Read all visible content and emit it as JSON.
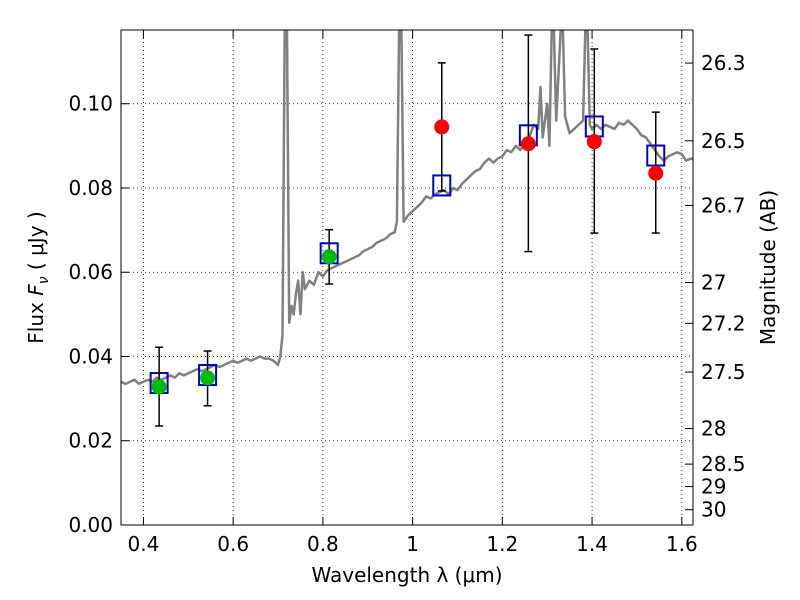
{
  "chart_data": {
    "type": "scatter",
    "title": "",
    "xlabel": "Wavelength  λ (μm)",
    "ylabel": "Flux  F_ν  ( μJy )",
    "ylabel_parts": {
      "prefix": "Flux  ",
      "symbol": "F",
      "subscript": "ν",
      "suffix": "  ( μJy )"
    },
    "y2label": "Magnitude (AB)",
    "xlim": [
      0.35,
      1.625
    ],
    "ylim": [
      0.0,
      0.1175
    ],
    "grid": true,
    "x_ticks": [
      {
        "value": 0.4,
        "label": "0.4"
      },
      {
        "value": 0.6,
        "label": "0.6"
      },
      {
        "value": 0.8,
        "label": "0.8"
      },
      {
        "value": 1.0,
        "label": "1"
      },
      {
        "value": 1.2,
        "label": "1.2"
      },
      {
        "value": 1.4,
        "label": "1.4"
      },
      {
        "value": 1.6,
        "label": "1.6"
      }
    ],
    "y_ticks": [
      {
        "value": 0.0,
        "label": "0.00"
      },
      {
        "value": 0.02,
        "label": "0.02"
      },
      {
        "value": 0.04,
        "label": "0.04"
      },
      {
        "value": 0.06,
        "label": "0.06"
      },
      {
        "value": 0.08,
        "label": "0.08"
      },
      {
        "value": 0.1,
        "label": "0.10"
      }
    ],
    "y2_ticks": [
      {
        "mag": 26.3,
        "label": "26.3"
      },
      {
        "mag": 26.5,
        "label": "26.5"
      },
      {
        "mag": 26.7,
        "label": "26.7"
      },
      {
        "mag": 27.0,
        "label": "27"
      },
      {
        "mag": 27.2,
        "label": "27.2"
      },
      {
        "mag": 27.5,
        "label": "27.5"
      },
      {
        "mag": 28.0,
        "label": "28"
      },
      {
        "mag": 28.5,
        "label": "28.5"
      },
      {
        "mag": 29.0,
        "label": "29"
      },
      {
        "mag": 30.0,
        "label": "30"
      }
    ],
    "sed_model": {
      "name": "model SED",
      "color": "#808080",
      "points": [
        [
          0.35,
          0.034
        ],
        [
          0.36,
          0.0335
        ],
        [
          0.37,
          0.034
        ],
        [
          0.38,
          0.0345
        ],
        [
          0.39,
          0.0335
        ],
        [
          0.4,
          0.034
        ],
        [
          0.41,
          0.0345
        ],
        [
          0.42,
          0.034
        ],
        [
          0.43,
          0.035
        ],
        [
          0.44,
          0.0345
        ],
        [
          0.45,
          0.035
        ],
        [
          0.46,
          0.0355
        ],
        [
          0.47,
          0.035
        ],
        [
          0.48,
          0.036
        ],
        [
          0.49,
          0.0355
        ],
        [
          0.5,
          0.036
        ],
        [
          0.51,
          0.0365
        ],
        [
          0.52,
          0.037
        ],
        [
          0.53,
          0.0365
        ],
        [
          0.54,
          0.037
        ],
        [
          0.55,
          0.0375
        ],
        [
          0.56,
          0.038
        ],
        [
          0.57,
          0.0375
        ],
        [
          0.58,
          0.038
        ],
        [
          0.59,
          0.0385
        ],
        [
          0.6,
          0.039
        ],
        [
          0.61,
          0.0385
        ],
        [
          0.62,
          0.039
        ],
        [
          0.63,
          0.0395
        ],
        [
          0.64,
          0.039
        ],
        [
          0.65,
          0.0395
        ],
        [
          0.66,
          0.04
        ],
        [
          0.67,
          0.0395
        ],
        [
          0.68,
          0.0395
        ],
        [
          0.69,
          0.039
        ],
        [
          0.7,
          0.038
        ],
        [
          0.705,
          0.04
        ],
        [
          0.71,
          0.045
        ],
        [
          0.715,
          0.1175
        ],
        [
          0.72,
          0.1175
        ],
        [
          0.725,
          0.048
        ],
        [
          0.73,
          0.052
        ],
        [
          0.735,
          0.05
        ],
        [
          0.74,
          0.055
        ],
        [
          0.745,
          0.058
        ],
        [
          0.75,
          0.05
        ],
        [
          0.755,
          0.06
        ],
        [
          0.76,
          0.056
        ],
        [
          0.77,
          0.058
        ],
        [
          0.78,
          0.057
        ],
        [
          0.79,
          0.06
        ],
        [
          0.8,
          0.059
        ],
        [
          0.81,
          0.0605
        ],
        [
          0.82,
          0.061
        ],
        [
          0.83,
          0.0615
        ],
        [
          0.84,
          0.062
        ],
        [
          0.85,
          0.0625
        ],
        [
          0.86,
          0.063
        ],
        [
          0.87,
          0.0635
        ],
        [
          0.88,
          0.064
        ],
        [
          0.89,
          0.065
        ],
        [
          0.9,
          0.0655
        ],
        [
          0.91,
          0.066
        ],
        [
          0.92,
          0.067
        ],
        [
          0.93,
          0.0675
        ],
        [
          0.94,
          0.068
        ],
        [
          0.95,
          0.069
        ],
        [
          0.96,
          0.0695
        ],
        [
          0.965,
          0.072
        ],
        [
          0.97,
          0.1175
        ],
        [
          0.975,
          0.1175
        ],
        [
          0.98,
          0.072
        ],
        [
          0.99,
          0.0735
        ],
        [
          1.0,
          0.0745
        ],
        [
          1.01,
          0.0755
        ],
        [
          1.02,
          0.0765
        ],
        [
          1.03,
          0.078
        ],
        [
          1.04,
          0.0775
        ],
        [
          1.05,
          0.0785
        ],
        [
          1.06,
          0.079
        ],
        [
          1.07,
          0.0795
        ],
        [
          1.08,
          0.0785
        ],
        [
          1.09,
          0.08
        ],
        [
          1.1,
          0.0795
        ],
        [
          1.11,
          0.081
        ],
        [
          1.12,
          0.082
        ],
        [
          1.13,
          0.083
        ],
        [
          1.14,
          0.084
        ],
        [
          1.15,
          0.0845
        ],
        [
          1.16,
          0.086
        ],
        [
          1.17,
          0.087
        ],
        [
          1.18,
          0.086
        ],
        [
          1.19,
          0.087
        ],
        [
          1.2,
          0.0875
        ],
        [
          1.21,
          0.089
        ],
        [
          1.22,
          0.0885
        ],
        [
          1.23,
          0.09
        ],
        [
          1.24,
          0.089
        ],
        [
          1.25,
          0.0905
        ],
        [
          1.26,
          0.092
        ],
        [
          1.27,
          0.095
        ],
        [
          1.28,
          0.094
        ],
        [
          1.285,
          0.104
        ],
        [
          1.29,
          0.092
        ],
        [
          1.3,
          0.1
        ],
        [
          1.305,
          0.09
        ],
        [
          1.31,
          0.1175
        ],
        [
          1.315,
          0.1175
        ],
        [
          1.32,
          0.096
        ],
        [
          1.33,
          0.1175
        ],
        [
          1.335,
          0.1175
        ],
        [
          1.34,
          0.097
        ],
        [
          1.35,
          0.093
        ],
        [
          1.36,
          0.094
        ],
        [
          1.37,
          0.095
        ],
        [
          1.38,
          0.096
        ],
        [
          1.385,
          0.1175
        ],
        [
          1.39,
          0.1175
        ],
        [
          1.395,
          0.095
        ],
        [
          1.4,
          0.094
        ],
        [
          1.41,
          0.095
        ],
        [
          1.42,
          0.094
        ],
        [
          1.43,
          0.095
        ],
        [
          1.44,
          0.0945
        ],
        [
          1.45,
          0.094
        ],
        [
          1.46,
          0.0955
        ],
        [
          1.47,
          0.095
        ],
        [
          1.48,
          0.096
        ],
        [
          1.49,
          0.095
        ],
        [
          1.5,
          0.094
        ],
        [
          1.51,
          0.0925
        ],
        [
          1.52,
          0.092
        ],
        [
          1.53,
          0.0905
        ],
        [
          1.54,
          0.089
        ],
        [
          1.55,
          0.0875
        ],
        [
          1.56,
          0.0865
        ],
        [
          1.57,
          0.0875
        ],
        [
          1.58,
          0.088
        ],
        [
          1.59,
          0.0885
        ],
        [
          1.6,
          0.088
        ],
        [
          1.61,
          0.0865
        ],
        [
          1.62,
          0.087
        ],
        [
          1.625,
          0.0868
        ]
      ]
    },
    "model_photometry": {
      "name": "model bandpass flux",
      "marker": "open-square",
      "color": "#0000cc",
      "points": [
        [
          0.435,
          0.0337
        ],
        [
          0.543,
          0.0356
        ],
        [
          0.814,
          0.0645
        ],
        [
          1.065,
          0.0806
        ],
        [
          1.258,
          0.0925
        ],
        [
          1.405,
          0.0946
        ],
        [
          1.542,
          0.0877
        ]
      ]
    },
    "observed_photometry": [
      {
        "x": 0.435,
        "y": 0.0328,
        "err_low": 0.0235,
        "err_high": 0.0422,
        "color": "#00bb00"
      },
      {
        "x": 0.543,
        "y": 0.0349,
        "err_low": 0.0283,
        "err_high": 0.0413,
        "color": "#00bb00"
      },
      {
        "x": 0.814,
        "y": 0.0637,
        "err_low": 0.0572,
        "err_high": 0.0701,
        "color": "#00bb00"
      },
      {
        "x": 1.065,
        "y": 0.0945,
        "err_low": 0.0793,
        "err_high": 0.1097,
        "color": "#ff0000"
      },
      {
        "x": 1.258,
        "y": 0.0905,
        "err_low": 0.0649,
        "err_high": 0.1163,
        "color": "#ff0000"
      },
      {
        "x": 1.405,
        "y": 0.091,
        "err_low": 0.0693,
        "err_high": 0.113,
        "color": "#ff0000"
      },
      {
        "x": 1.542,
        "y": 0.0835,
        "err_low": 0.0693,
        "err_high": 0.098,
        "color": "#ff0000"
      }
    ]
  }
}
